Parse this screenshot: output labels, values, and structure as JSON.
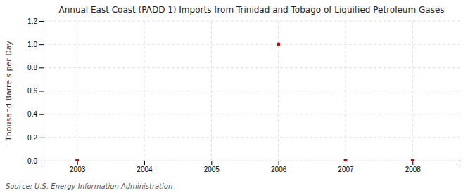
{
  "chart_data": {
    "type": "scatter",
    "title": "Annual East Coast (PADD 1) Imports from Trinidad and Tobago of Liquified Petroleum Gases",
    "ylabel": "Thousand Barrels per Day",
    "source": "Source: U.S. Energy Information Administration",
    "x": [
      2003,
      2006,
      2007,
      2008
    ],
    "values": [
      0.0,
      1.0,
      0.0,
      0.0
    ],
    "color": "#cc0000",
    "marker": "square",
    "xlim": [
      2002.5,
      2008.7
    ],
    "xticks": [
      2003,
      2004,
      2005,
      2006,
      2007,
      2008
    ],
    "ylim": [
      0.0,
      1.2
    ],
    "yticks": [
      {
        "value": 0.0,
        "label": "0.0"
      },
      0.2,
      0.4,
      0.6,
      0.8,
      {
        "value": 1.0,
        "label": "1.0"
      },
      1.2
    ],
    "grid": true
  }
}
